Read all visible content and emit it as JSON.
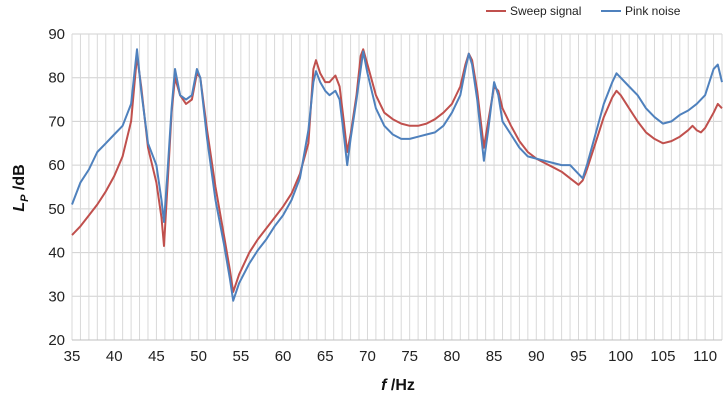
{
  "chart_data": {
    "type": "line",
    "xlabel_main": "f",
    "xlabel_unit": " /Hz",
    "ylabel_main": "L",
    "ylabel_sub": "P",
    "ylabel_unit": " /dB",
    "xlim": [
      35,
      112
    ],
    "ylim": [
      20,
      90
    ],
    "xticks": [
      35,
      40,
      45,
      50,
      55,
      60,
      65,
      70,
      75,
      80,
      85,
      90,
      95,
      100,
      105,
      110
    ],
    "yticks": [
      20,
      30,
      40,
      50,
      60,
      70,
      80,
      90
    ],
    "grid": "vertical minor every 1 Hz",
    "legend_position": "top-right",
    "series": [
      {
        "name": "Sweep signal",
        "color": "#c0504d",
        "points": [
          [
            35,
            44
          ],
          [
            36,
            46
          ],
          [
            37,
            48.5
          ],
          [
            38,
            51
          ],
          [
            39,
            54
          ],
          [
            40,
            57.5
          ],
          [
            41,
            62
          ],
          [
            42,
            70
          ],
          [
            42.7,
            85
          ],
          [
            43.2,
            78
          ],
          [
            44,
            64
          ],
          [
            45,
            56
          ],
          [
            45.6,
            48
          ],
          [
            45.9,
            41.5
          ],
          [
            46.3,
            55
          ],
          [
            46.8,
            72
          ],
          [
            47.2,
            80
          ],
          [
            47.8,
            76
          ],
          [
            48.5,
            74
          ],
          [
            49.2,
            75
          ],
          [
            49.8,
            81
          ],
          [
            50.2,
            80
          ],
          [
            51,
            68
          ],
          [
            52,
            55
          ],
          [
            53,
            44
          ],
          [
            53.7,
            36
          ],
          [
            54.1,
            31
          ],
          [
            54.8,
            35
          ],
          [
            56,
            40
          ],
          [
            57,
            43
          ],
          [
            58,
            45.5
          ],
          [
            59,
            48
          ],
          [
            60,
            50.5
          ],
          [
            61,
            53.5
          ],
          [
            62,
            58
          ],
          [
            63,
            65
          ],
          [
            63.6,
            82
          ],
          [
            63.9,
            84
          ],
          [
            64.4,
            81
          ],
          [
            65,
            79
          ],
          [
            65.5,
            79
          ],
          [
            66.2,
            80.5
          ],
          [
            66.7,
            78
          ],
          [
            67.2,
            70
          ],
          [
            67.6,
            63
          ],
          [
            68,
            67
          ],
          [
            68.7,
            76
          ],
          [
            69.2,
            85
          ],
          [
            69.5,
            86.5
          ],
          [
            70,
            83
          ],
          [
            71,
            76
          ],
          [
            72,
            72
          ],
          [
            73,
            70.5
          ],
          [
            74,
            69.5
          ],
          [
            75,
            69
          ],
          [
            76,
            69
          ],
          [
            77,
            69.5
          ],
          [
            78,
            70.5
          ],
          [
            79,
            72
          ],
          [
            80,
            74
          ],
          [
            81,
            78
          ],
          [
            81.6,
            83
          ],
          [
            82,
            85.5
          ],
          [
            82.4,
            84
          ],
          [
            83,
            77
          ],
          [
            83.8,
            64
          ],
          [
            84.3,
            70
          ],
          [
            85,
            78
          ],
          [
            85.5,
            77
          ],
          [
            86,
            73
          ],
          [
            87,
            69
          ],
          [
            88,
            65.5
          ],
          [
            89,
            63
          ],
          [
            90,
            61.5
          ],
          [
            91,
            60.5
          ],
          [
            92,
            59.5
          ],
          [
            93,
            58.5
          ],
          [
            94,
            57
          ],
          [
            95,
            55.5
          ],
          [
            95.5,
            56.5
          ],
          [
            96,
            59
          ],
          [
            97,
            65
          ],
          [
            98,
            71
          ],
          [
            99,
            75.5
          ],
          [
            99.5,
            77
          ],
          [
            100,
            76
          ],
          [
            101,
            73
          ],
          [
            102,
            70
          ],
          [
            103,
            67.5
          ],
          [
            104,
            66
          ],
          [
            105,
            65
          ],
          [
            106,
            65.5
          ],
          [
            107,
            66.5
          ],
          [
            108,
            68
          ],
          [
            108.5,
            69
          ],
          [
            109,
            68
          ],
          [
            109.5,
            67.5
          ],
          [
            110,
            68.5
          ],
          [
            111,
            72
          ],
          [
            111.5,
            74
          ],
          [
            112,
            73
          ]
        ]
      },
      {
        "name": "Pink noise",
        "color": "#4f81bd",
        "points": [
          [
            35,
            51
          ],
          [
            36,
            56
          ],
          [
            37,
            59
          ],
          [
            38,
            63
          ],
          [
            39,
            65
          ],
          [
            40,
            67
          ],
          [
            41,
            69
          ],
          [
            42,
            74
          ],
          [
            42.7,
            86.5
          ],
          [
            43.2,
            77
          ],
          [
            44,
            65
          ],
          [
            45,
            60
          ],
          [
            45.6,
            52
          ],
          [
            45.9,
            47
          ],
          [
            46.3,
            58
          ],
          [
            46.8,
            73
          ],
          [
            47.2,
            82
          ],
          [
            47.8,
            76
          ],
          [
            48.5,
            75
          ],
          [
            49.2,
            76
          ],
          [
            49.8,
            82
          ],
          [
            50.2,
            80
          ],
          [
            51,
            66
          ],
          [
            52,
            52
          ],
          [
            53,
            42
          ],
          [
            53.7,
            34
          ],
          [
            54.1,
            29
          ],
          [
            54.8,
            33
          ],
          [
            56,
            37.5
          ],
          [
            57,
            40.5
          ],
          [
            58,
            43
          ],
          [
            59,
            46
          ],
          [
            60,
            48.5
          ],
          [
            61,
            52
          ],
          [
            62,
            57
          ],
          [
            63,
            68
          ],
          [
            63.6,
            79
          ],
          [
            63.9,
            81.5
          ],
          [
            64.4,
            79
          ],
          [
            65,
            77
          ],
          [
            65.5,
            76
          ],
          [
            66.2,
            77
          ],
          [
            66.7,
            75
          ],
          [
            67.2,
            67
          ],
          [
            67.6,
            60
          ],
          [
            68,
            66
          ],
          [
            68.7,
            75
          ],
          [
            69.2,
            82
          ],
          [
            69.5,
            86
          ],
          [
            70,
            81
          ],
          [
            71,
            73
          ],
          [
            72,
            69
          ],
          [
            73,
            67
          ],
          [
            74,
            66
          ],
          [
            75,
            66
          ],
          [
            76,
            66.5
          ],
          [
            77,
            67
          ],
          [
            78,
            67.5
          ],
          [
            79,
            69
          ],
          [
            80,
            72
          ],
          [
            81,
            76
          ],
          [
            81.6,
            82
          ],
          [
            82,
            85.5
          ],
          [
            82.4,
            83
          ],
          [
            83,
            75
          ],
          [
            83.8,
            61
          ],
          [
            84.3,
            68
          ],
          [
            85,
            79
          ],
          [
            85.5,
            76
          ],
          [
            86,
            70
          ],
          [
            87,
            67
          ],
          [
            88,
            64
          ],
          [
            89,
            62
          ],
          [
            90,
            61.5
          ],
          [
            91,
            61
          ],
          [
            92,
            60.5
          ],
          [
            93,
            60
          ],
          [
            94,
            60
          ],
          [
            95,
            58
          ],
          [
            95.5,
            57
          ],
          [
            96,
            60
          ],
          [
            97,
            67
          ],
          [
            98,
            74
          ],
          [
            99,
            79
          ],
          [
            99.5,
            81
          ],
          [
            100,
            80
          ],
          [
            101,
            78
          ],
          [
            102,
            76
          ],
          [
            103,
            73
          ],
          [
            104,
            71
          ],
          [
            105,
            69.5
          ],
          [
            106,
            70
          ],
          [
            107,
            71.5
          ],
          [
            108,
            72.5
          ],
          [
            109,
            74
          ],
          [
            110,
            76
          ],
          [
            111,
            82
          ],
          [
            111.5,
            83
          ],
          [
            112,
            79
          ]
        ]
      }
    ]
  }
}
